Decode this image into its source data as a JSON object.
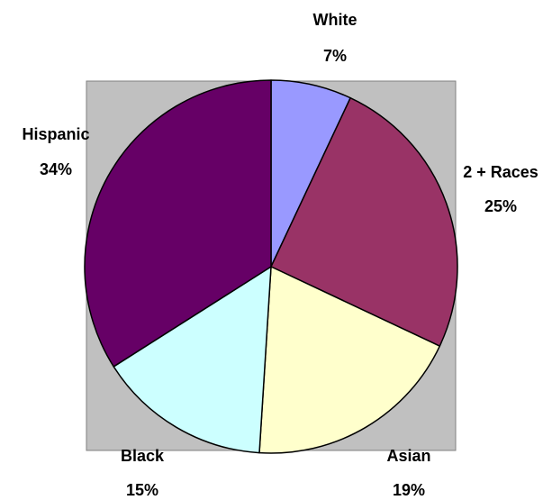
{
  "chart_data": {
    "type": "pie",
    "title": "",
    "slices": [
      {
        "label": "White",
        "value": 7,
        "value_label": "7%",
        "color": "#9999ff"
      },
      {
        "label": "2 + Races",
        "value": 25,
        "value_label": "25%",
        "color": "#993366"
      },
      {
        "label": "Asian",
        "value": 19,
        "value_label": "19%",
        "color": "#ffffcc"
      },
      {
        "label": "Black",
        "value": 15,
        "value_label": "15%",
        "color": "#ccffff"
      },
      {
        "label": "Hispanic",
        "value": 34,
        "value_label": "34%",
        "color": "#660066"
      }
    ],
    "plot_area_background": "#c0c0c0",
    "slice_border_color": "#000000",
    "legend": "none"
  }
}
